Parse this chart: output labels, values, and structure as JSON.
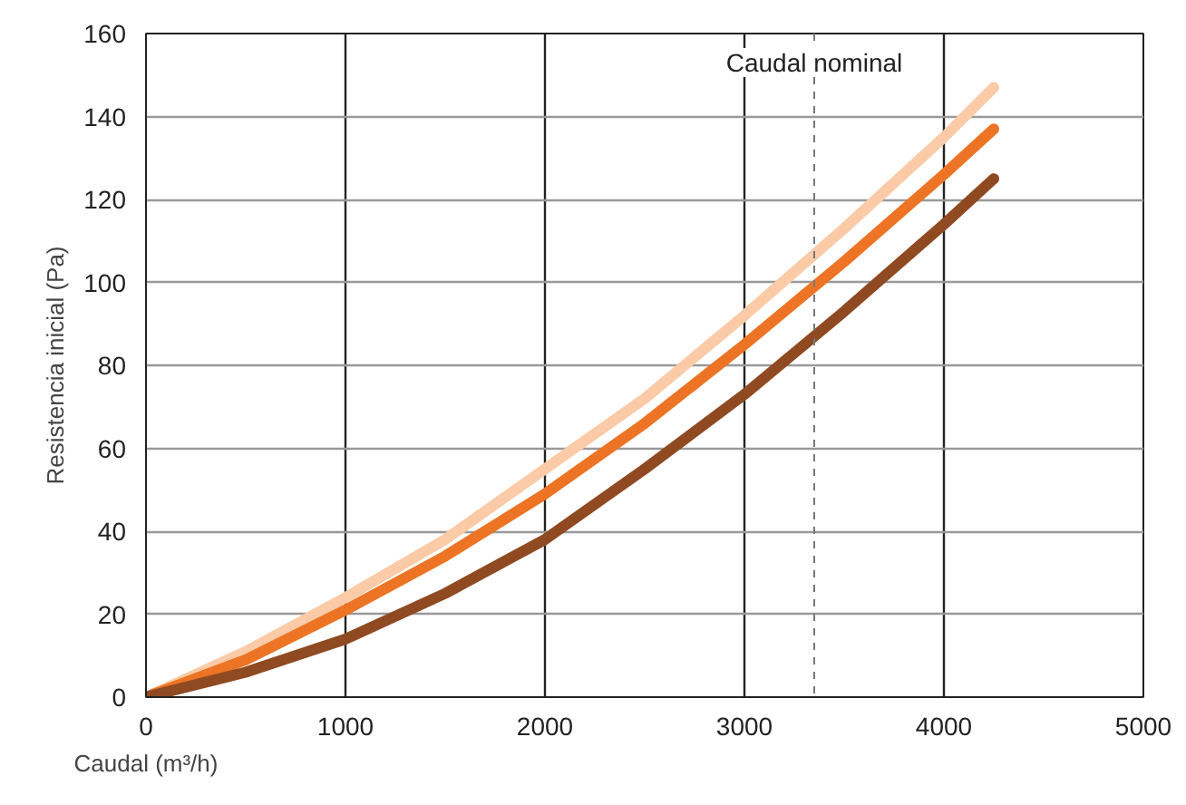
{
  "chart_data": {
    "type": "line",
    "xlabel": "Caudal (m³/h)",
    "ylabel": "Resistencia inicial (Pa)",
    "xlim": [
      0,
      5000
    ],
    "ylim": [
      0,
      160
    ],
    "xticks": [
      0,
      1000,
      2000,
      3000,
      4000,
      5000
    ],
    "yticks": [
      0,
      20,
      40,
      60,
      80,
      100,
      120,
      140,
      160
    ],
    "grid": true,
    "x": [
      0,
      500,
      1000,
      1500,
      2000,
      2500,
      3000,
      3500,
      4000,
      4250
    ],
    "series": [
      {
        "color": "#fbcaa6",
        "values": [
          0,
          11,
          24,
          38,
          55,
          72,
          92,
          113,
          135,
          147
        ]
      },
      {
        "color": "#ec7424",
        "values": [
          0,
          9,
          21,
          34,
          49,
          66,
          85,
          105,
          126,
          137
        ]
      },
      {
        "color": "#8f4a21",
        "values": [
          0,
          6,
          14,
          25,
          38,
          55,
          73,
          93,
          114,
          125
        ]
      }
    ],
    "ref_lines": [
      {
        "axis": "x",
        "value": 3350,
        "label": "Caudal nominal",
        "line_style": "dashed",
        "color": "#777777"
      }
    ]
  }
}
